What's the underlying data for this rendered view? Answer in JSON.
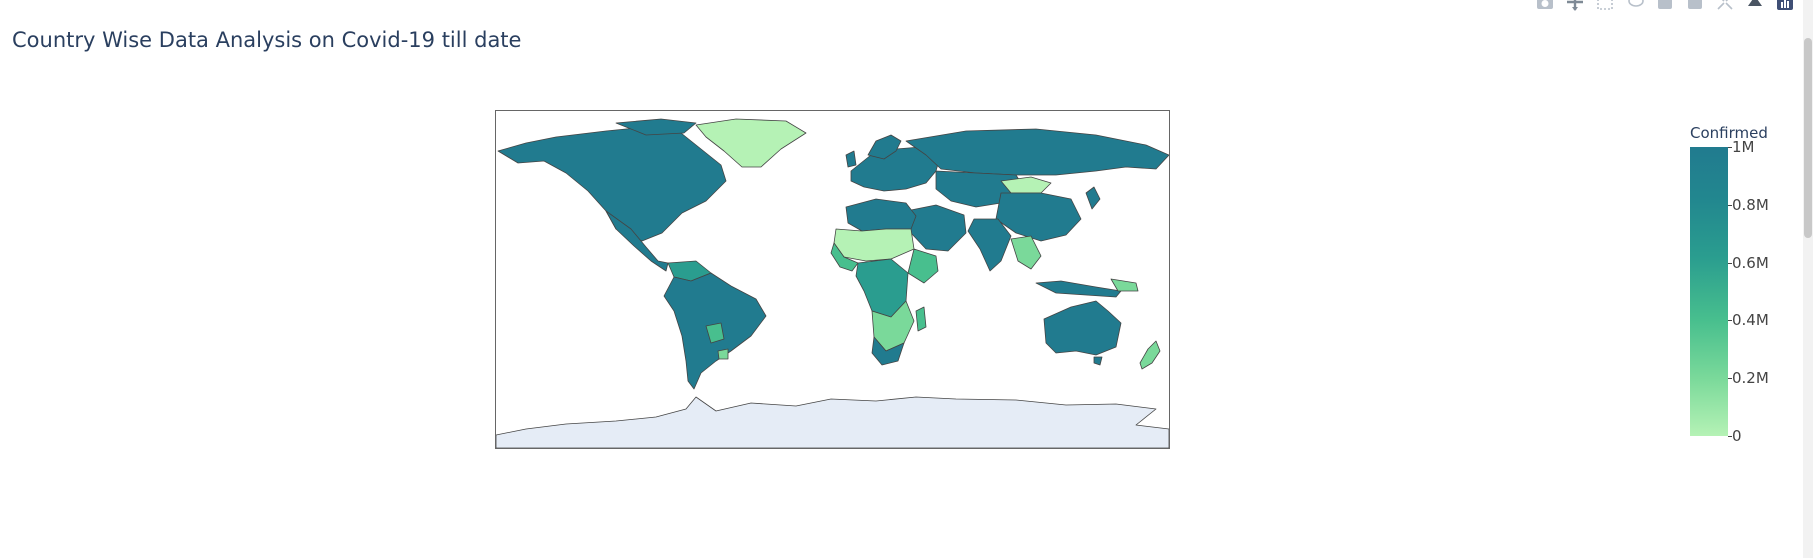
{
  "title": "Country Wise Data Analysis on Covid-19 till date",
  "modebar": {
    "buttons": [
      {
        "name": "camera-icon"
      },
      {
        "name": "pan-icon"
      },
      {
        "name": "box-select-icon"
      },
      {
        "name": "lasso-icon"
      },
      {
        "name": "zoom-in-icon"
      },
      {
        "name": "zoom-out-icon"
      },
      {
        "name": "autoscale-icon"
      },
      {
        "name": "reset-icon"
      },
      {
        "name": "plotly-logo-icon"
      }
    ]
  },
  "colorbar": {
    "title": "Confirmed",
    "ticks": [
      "1M",
      "0.8M",
      "0.6M",
      "0.4M",
      "0.2M",
      "0"
    ],
    "range": [
      0,
      1000000
    ],
    "colors": [
      "#b5f2b5",
      "#7ad99a",
      "#48bf8e",
      "#2a9d8f",
      "#22878f",
      "#217b8f"
    ]
  },
  "map": {
    "ocean_color": "#ffffff",
    "antarctica_color": "#e5ecf6",
    "border_color": "#444444",
    "high_color": "#217b8f",
    "mid_color": "#2a9d8f",
    "low_color": "#b5f2b5"
  }
}
